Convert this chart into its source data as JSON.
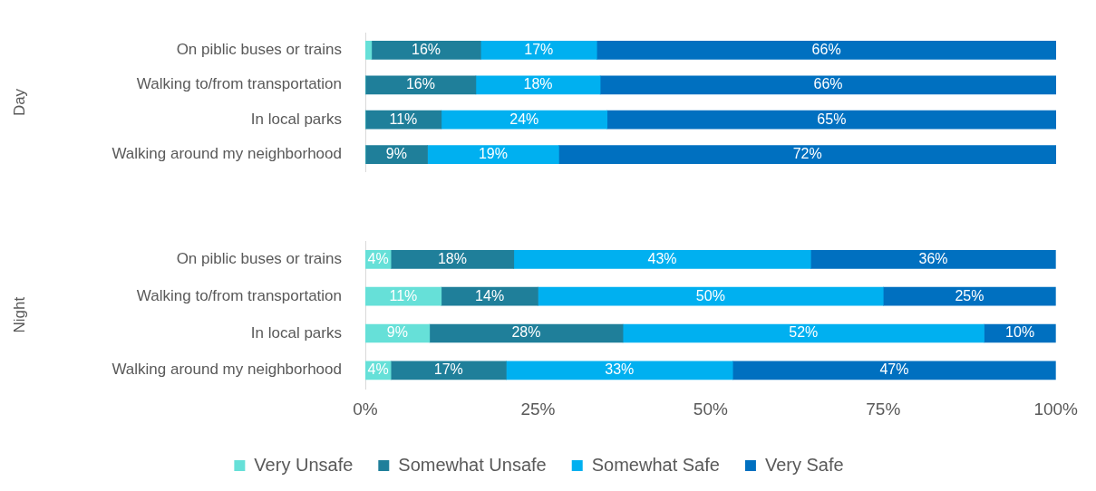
{
  "chart_data": [
    {
      "type": "bar",
      "orientation": "horizontal",
      "stacked": true,
      "ylabel": "Day",
      "tick_labels": "y",
      "xlim": [
        0,
        100
      ],
      "categories": [
        "On piblic buses or trains",
        "Walking to/from transportation",
        "In local parks",
        "Walking around my neighborhood"
      ],
      "series": [
        {
          "color": "#66e0d8",
          "values": [
            0.9,
            0,
            0,
            0
          ],
          "value_labels": [
            null,
            null,
            null,
            null
          ]
        },
        {
          "color": "#1f7f9a",
          "values": [
            15.8,
            16,
            11,
            9
          ],
          "value_labels": [
            "16%",
            "16%",
            "11%",
            "9%"
          ]
        },
        {
          "color": "#00b0f0",
          "values": [
            16.8,
            18,
            24,
            19
          ],
          "value_labels": [
            "17%",
            "18%",
            "24%",
            "19%"
          ]
        },
        {
          "color": "#0070c0",
          "values": [
            66.5,
            66,
            65,
            72
          ],
          "value_labels": [
            "66%",
            "66%",
            "65%",
            "72%"
          ]
        }
      ]
    },
    {
      "type": "bar",
      "orientation": "horizontal",
      "stacked": true,
      "ylabel": "Night",
      "legend": "bottom",
      "xlim": [
        0,
        100
      ],
      "xticks": [
        {
          "value": 0,
          "label": "0%"
        },
        {
          "value": 25,
          "label": "25%"
        },
        {
          "value": 50,
          "label": "50%"
        },
        {
          "value": 75,
          "label": "75%"
        },
        {
          "value": 100,
          "label": "100%"
        }
      ],
      "categories": [
        "On piblic buses or trains",
        "Walking to/from transportation",
        "In local parks",
        "Walking around my neighborhood"
      ],
      "series": [
        {
          "name": "Very Unsafe",
          "color": "#66e0d8",
          "values": [
            3.7,
            11,
            9.3,
            3.7
          ],
          "value_labels": [
            "4%",
            "11%",
            "9%",
            "4%"
          ]
        },
        {
          "name": "Somewhat Unsafe",
          "color": "#1f7f9a",
          "values": [
            17.8,
            14,
            28,
            16.7
          ],
          "value_labels": [
            "18%",
            "14%",
            "28%",
            "17%"
          ]
        },
        {
          "name": "Somewhat Safe",
          "color": "#00b0f0",
          "values": [
            43,
            50,
            52.3,
            32.8
          ],
          "value_labels": [
            "43%",
            "50%",
            "52%",
            "33%"
          ]
        },
        {
          "name": "Very Safe",
          "color": "#0070c0",
          "values": [
            35.5,
            25,
            10.4,
            46.8
          ],
          "value_labels": [
            "36%",
            "25%",
            "10%",
            "47%"
          ]
        }
      ]
    }
  ]
}
